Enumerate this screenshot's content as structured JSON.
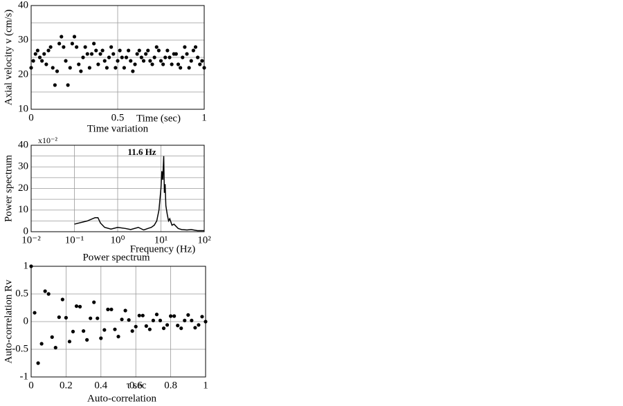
{
  "chart_data": [
    {
      "type": "scatter",
      "ylabel": "Axial velocity v (cm/s)",
      "xlabel": "Time (sec)",
      "caption": "Time variation",
      "xlim": [
        0,
        1
      ],
      "xticks": [
        0,
        0.5,
        1
      ],
      "ylim": [
        10,
        40
      ],
      "yticks": [
        10,
        20,
        30,
        40
      ],
      "yminor": [
        15,
        25,
        35
      ],
      "grid": true,
      "color": "#000000",
      "x": [
        0,
        0.0125,
        0.025,
        0.0375,
        0.05,
        0.0625,
        0.075,
        0.0875,
        0.1,
        0.1125,
        0.125,
        0.1375,
        0.15,
        0.1625,
        0.175,
        0.1875,
        0.2,
        0.2125,
        0.225,
        0.2375,
        0.25,
        0.2625,
        0.275,
        0.2875,
        0.3,
        0.3125,
        0.325,
        0.3375,
        0.35,
        0.3625,
        0.375,
        0.3875,
        0.4,
        0.4125,
        0.425,
        0.4375,
        0.45,
        0.4625,
        0.475,
        0.4875,
        0.5,
        0.5125,
        0.525,
        0.5375,
        0.55,
        0.5625,
        0.575,
        0.5875,
        0.6,
        0.6125,
        0.625,
        0.6375,
        0.65,
        0.6625,
        0.675,
        0.6875,
        0.7,
        0.7125,
        0.725,
        0.7375,
        0.75,
        0.7625,
        0.775,
        0.7875,
        0.8,
        0.8125,
        0.825,
        0.8375,
        0.85,
        0.8625,
        0.875,
        0.8875,
        0.9,
        0.9125,
        0.925,
        0.9375,
        0.95,
        0.9625,
        0.975,
        0.9875,
        1
      ],
      "values": [
        22,
        24,
        26,
        27,
        25,
        24,
        26,
        23,
        27,
        28,
        22,
        17,
        21,
        29,
        31,
        28,
        24,
        17,
        22,
        29,
        31,
        28,
        23,
        21,
        25,
        28,
        26,
        22,
        26,
        29,
        27,
        23,
        26,
        27,
        24,
        22,
        25,
        28,
        26,
        22,
        24,
        27,
        25,
        22,
        25,
        27,
        24,
        21,
        23,
        26,
        27,
        25,
        24,
        26,
        27,
        24,
        23,
        25,
        28,
        27,
        24,
        23,
        25,
        27,
        25,
        23,
        26,
        26,
        23,
        22,
        25,
        28,
        26,
        22,
        24,
        27,
        28,
        25,
        23,
        24,
        22
      ]
    },
    {
      "type": "line",
      "ylabel": "Power spectrum",
      "xlabel": "Frequency (Hz)",
      "caption": "Power spectrum",
      "multiplier": "x10⁻²",
      "annotation": "11.6 Hz",
      "xscale": "log",
      "xlim": [
        0.01,
        100
      ],
      "xticks": [
        {
          "value": 0.01,
          "label": "10⁻²"
        },
        {
          "value": 0.1,
          "label": "10⁻¹"
        },
        {
          "value": 1,
          "label": "10⁰"
        },
        {
          "value": 10,
          "label": "10¹"
        },
        {
          "value": 100,
          "label": "10²"
        }
      ],
      "ylim": [
        0,
        40
      ],
      "yticks": [
        0,
        10,
        20,
        30,
        40
      ],
      "yminor": [
        5,
        15,
        25,
        35
      ],
      "grid": true,
      "color": "#000000",
      "x": [
        0.1,
        0.2,
        0.3,
        0.35,
        0.4,
        0.5,
        0.7,
        1,
        1.5,
        2,
        3,
        4,
        5,
        6,
        7,
        8,
        9,
        10,
        10.5,
        11,
        11.6,
        12,
        12.5,
        13,
        14,
        15,
        16,
        18,
        20,
        25,
        30,
        40,
        50,
        70,
        100
      ],
      "values": [
        3.5,
        5,
        6.5,
        6.5,
        4,
        2,
        1.2,
        2,
        1.5,
        1,
        2,
        0.8,
        1.5,
        2,
        3,
        5,
        10,
        20,
        28,
        24,
        35,
        18,
        22,
        12,
        8,
        5,
        6,
        3,
        3.5,
        1.5,
        1,
        0.8,
        1,
        0.5,
        0.5
      ]
    },
    {
      "type": "scatter",
      "ylabel": "Auto-correlation Rv",
      "xlabel": "τ sec",
      "caption": "Auto-correlation",
      "xlim": [
        0,
        1
      ],
      "xticks": [
        0,
        0.2,
        0.4,
        0.6,
        0.8,
        1
      ],
      "ylim": [
        -1,
        1
      ],
      "yticks": [
        -1,
        -0.5,
        0,
        0.5,
        1
      ],
      "grid": true,
      "color": "#000000",
      "x": [
        0,
        0.02,
        0.04,
        0.06,
        0.08,
        0.1,
        0.12,
        0.14,
        0.16,
        0.18,
        0.2,
        0.22,
        0.24,
        0.26,
        0.28,
        0.3,
        0.32,
        0.34,
        0.36,
        0.38,
        0.4,
        0.42,
        0.44,
        0.46,
        0.48,
        0.5,
        0.52,
        0.54,
        0.56,
        0.58,
        0.6,
        0.62,
        0.64,
        0.66,
        0.68,
        0.7,
        0.72,
        0.74,
        0.76,
        0.78,
        0.8,
        0.82,
        0.84,
        0.86,
        0.88,
        0.9,
        0.92,
        0.94,
        0.96,
        0.98,
        1
      ],
      "values": [
        1,
        0.16,
        -0.75,
        -0.4,
        0.55,
        0.5,
        -0.28,
        -0.47,
        0.08,
        0.4,
        0.07,
        -0.36,
        -0.18,
        0.28,
        0.27,
        -0.17,
        -0.33,
        0.06,
        0.35,
        0.06,
        -0.3,
        -0.15,
        0.22,
        0.22,
        -0.14,
        -0.27,
        0.04,
        0.2,
        0.03,
        -0.17,
        -0.09,
        0.11,
        0.11,
        -0.08,
        -0.14,
        0.02,
        0.13,
        0.02,
        -0.12,
        -0.06,
        0.1,
        0.1,
        -0.07,
        -0.12,
        0.02,
        0.12,
        0.02,
        -0.11,
        -0.06,
        0.09,
        0
      ]
    }
  ]
}
